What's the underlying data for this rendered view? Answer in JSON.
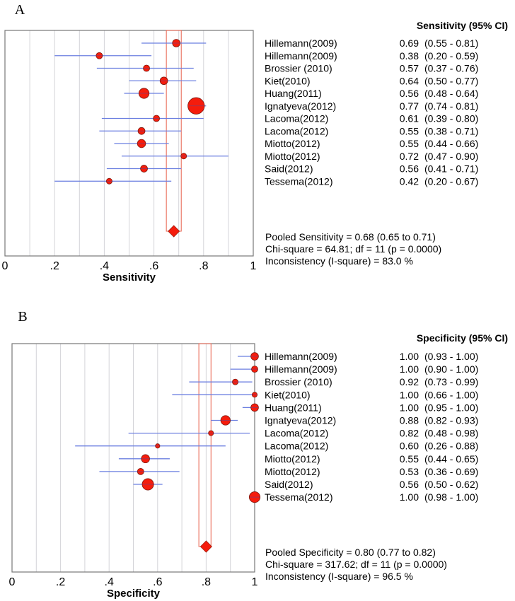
{
  "chart_data": [
    {
      "type": "forest",
      "panel": "A",
      "xlabel": "Sensitivity",
      "header": "Sensitivity (95% CI)",
      "xlim": [
        0,
        1
      ],
      "ticks": [
        "0",
        ".2",
        ".4",
        ".6",
        ".8",
        "1"
      ],
      "grid": true,
      "studies": [
        {
          "name": "Hillemann(2009)",
          "est": "0.69",
          "ci": "(0.55 - 0.81)",
          "v": 0.69,
          "lo": 0.55,
          "hi": 0.81,
          "weight": 1.2
        },
        {
          "name": "Hillemann(2009)",
          "est": "0.38",
          "ci": "(0.20 - 0.59)",
          "v": 0.38,
          "lo": 0.2,
          "hi": 0.59,
          "weight": 1.0
        },
        {
          "name": "Brossier (2010)",
          "est": "0.57",
          "ci": "(0.37 - 0.76)",
          "v": 0.57,
          "lo": 0.37,
          "hi": 0.76,
          "weight": 1.0
        },
        {
          "name": "Kiet(2010)",
          "est": "0.64",
          "ci": "(0.50 - 0.77)",
          "v": 0.64,
          "lo": 0.5,
          "hi": 0.77,
          "weight": 1.2
        },
        {
          "name": "Huang(2011)",
          "est": "0.56",
          "ci": "(0.48 - 0.64)",
          "v": 0.56,
          "lo": 0.48,
          "hi": 0.64,
          "weight": 1.6
        },
        {
          "name": "Ignatyeva(2012)",
          "est": "0.77",
          "ci": "(0.74 - 0.81)",
          "v": 0.77,
          "lo": 0.74,
          "hi": 0.81,
          "weight": 2.6
        },
        {
          "name": "Lacoma(2012)",
          "est": "0.61",
          "ci": "(0.39 - 0.80)",
          "v": 0.61,
          "lo": 0.39,
          "hi": 0.8,
          "weight": 1.0
        },
        {
          "name": "Lacoma(2012)",
          "est": "0.55",
          "ci": "(0.38 - 0.71)",
          "v": 0.55,
          "lo": 0.38,
          "hi": 0.71,
          "weight": 1.1
        },
        {
          "name": "Miotto(2012)",
          "est": "0.55",
          "ci": "(0.44 - 0.66)",
          "v": 0.55,
          "lo": 0.44,
          "hi": 0.66,
          "weight": 1.3
        },
        {
          "name": "Miotto(2012)",
          "est": "0.72",
          "ci": "(0.47 - 0.90)",
          "v": 0.72,
          "lo": 0.47,
          "hi": 0.9,
          "weight": 0.9
        },
        {
          "name": "Said(2012)",
          "est": "0.56",
          "ci": "(0.41 - 0.71)",
          "v": 0.56,
          "lo": 0.41,
          "hi": 0.71,
          "weight": 1.1
        },
        {
          "name": "Tessema(2012)",
          "est": "0.42",
          "ci": "(0.20 - 0.67)",
          "v": 0.42,
          "lo": 0.2,
          "hi": 0.67,
          "weight": 0.9
        }
      ],
      "pooled": {
        "v": 0.68,
        "lo": 0.65,
        "hi": 0.71
      },
      "summary": [
        "Pooled Sensitivity = 0.68 (0.65 to 0.71)",
        "Chi-square = 64.81; df =  11 (p = 0.0000)",
        "Inconsistency (I-square) = 83.0 %"
      ]
    },
    {
      "type": "forest",
      "panel": "B",
      "xlabel": "Specificity",
      "header": "Specificity (95% CI)",
      "xlim": [
        0,
        1
      ],
      "ticks": [
        "0",
        ".2",
        ".4",
        ".6",
        ".8",
        "1"
      ],
      "grid": true,
      "studies": [
        {
          "name": "Hillemann(2009)",
          "est": "1.00",
          "ci": "(0.93 - 1.00)",
          "v": 1.0,
          "lo": 0.93,
          "hi": 1.0,
          "weight": 1.2
        },
        {
          "name": "Hillemann(2009)",
          "est": "1.00",
          "ci": "(0.90 - 1.00)",
          "v": 1.0,
          "lo": 0.9,
          "hi": 1.0,
          "weight": 1.0
        },
        {
          "name": "Brossier (2010)",
          "est": "0.92",
          "ci": "(0.73 - 0.99)",
          "v": 0.92,
          "lo": 0.73,
          "hi": 0.99,
          "weight": 0.9
        },
        {
          "name": "Kiet(2010)",
          "est": "1.00",
          "ci": "(0.66 - 1.00)",
          "v": 1.0,
          "lo": 0.66,
          "hi": 1.0,
          "weight": 0.8
        },
        {
          "name": "Huang(2011)",
          "est": "1.00",
          "ci": "(0.95 - 1.00)",
          "v": 1.0,
          "lo": 0.95,
          "hi": 1.0,
          "weight": 1.2
        },
        {
          "name": "Ignatyeva(2012)",
          "est": "0.88",
          "ci": "(0.82 - 0.93)",
          "v": 0.88,
          "lo": 0.82,
          "hi": 0.93,
          "weight": 1.5
        },
        {
          "name": "Lacoma(2012)",
          "est": "0.82",
          "ci": "(0.48 - 0.98)",
          "v": 0.82,
          "lo": 0.48,
          "hi": 0.98,
          "weight": 0.8
        },
        {
          "name": "Lacoma(2012)",
          "est": "0.60",
          "ci": "(0.26 - 0.88)",
          "v": 0.6,
          "lo": 0.26,
          "hi": 0.88,
          "weight": 0.7
        },
        {
          "name": "Miotto(2012)",
          "est": "0.55",
          "ci": "(0.44 - 0.65)",
          "v": 0.55,
          "lo": 0.44,
          "hi": 0.65,
          "weight": 1.3
        },
        {
          "name": "Miotto(2012)",
          "est": "0.53",
          "ci": "(0.36 - 0.69)",
          "v": 0.53,
          "lo": 0.36,
          "hi": 0.69,
          "weight": 1.0
        },
        {
          "name": "Said(2012)",
          "est": "0.56",
          "ci": "(0.50 - 0.62)",
          "v": 0.56,
          "lo": 0.5,
          "hi": 0.62,
          "weight": 1.8
        },
        {
          "name": "Tessema(2012)",
          "est": "1.00",
          "ci": "(0.98 - 1.00)",
          "v": 1.0,
          "lo": 0.98,
          "hi": 1.0,
          "weight": 1.7
        }
      ],
      "pooled": {
        "v": 0.8,
        "lo": 0.77,
        "hi": 0.82
      },
      "summary": [
        "Pooled Specificity = 0.80 (0.77 to 0.82)",
        "Chi-square = 317.62; df =  11 (p = 0.0000)",
        "Inconsistency (I-square) = 96.5 %"
      ]
    }
  ]
}
